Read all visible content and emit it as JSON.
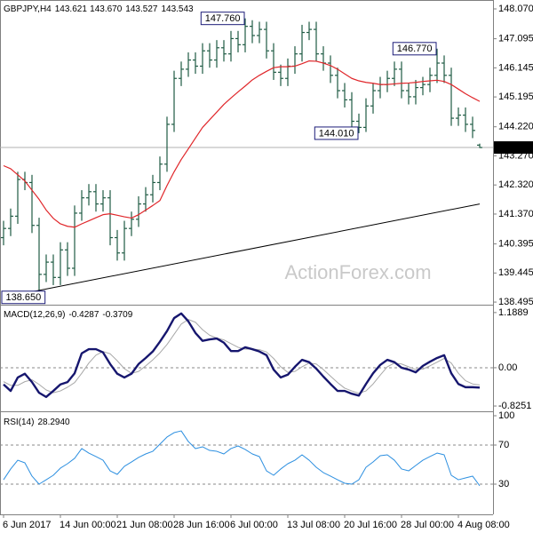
{
  "chart_data": {
    "type": "ohlc",
    "symbol": "GBPJPY,H4",
    "watermark": "ActionForex.com",
    "xlim": [
      -0.5,
      68.875
    ],
    "xticks": [
      {
        "value": 0,
        "label": "6 Jun 2017"
      },
      {
        "value": 8,
        "label": "14 Jun 00:00"
      },
      {
        "value": 16,
        "label": "21 Jun 08:00"
      },
      {
        "value": 24,
        "label": "28 Jun 16:00"
      },
      {
        "value": 32,
        "label": "6 Jul 00:00"
      },
      {
        "value": 40,
        "label": "13 Jul 08:00"
      },
      {
        "value": 48,
        "label": "20 Jul 16:00"
      },
      {
        "value": 56,
        "label": "28 Jul 00:00"
      },
      {
        "value": 64,
        "label": "4 Aug 08:00"
      }
    ],
    "ylim": [
      138.41,
      148.36
    ],
    "yticks": [
      {
        "value": 148.07,
        "label": "148.070"
      },
      147.095,
      146.145,
      145.195,
      {
        "value": 144.22,
        "label": "144.220"
      },
      {
        "value": 143.27,
        "label": "143.270"
      },
      {
        "value": 142.32,
        "label": "142.320"
      },
      {
        "value": 141.37,
        "label": "141.370"
      },
      140.395,
      139.445,
      138.495
    ],
    "bars": {
      "color": "#1f5b44",
      "open": [
        140.6,
        140.9,
        141.3,
        142.5,
        142.4,
        141.0,
        139.4,
        139.8,
        139.3,
        140.2,
        139.6,
        141.4,
        141.9,
        142.1,
        141.7,
        141.9,
        140.6,
        140.1,
        140.9,
        141.2,
        141.7,
        142.0,
        142.4,
        143.0,
        144.3,
        145.8,
        146.1,
        146.4,
        146.2,
        146.7,
        146.4,
        146.8,
        146.6,
        147.1,
        146.9,
        147.5,
        147.2,
        147.4,
        146.7,
        146.0,
        145.8,
        146.2,
        146.6,
        147.3,
        147.4,
        146.6,
        146.3,
        145.9,
        145.4,
        145.1,
        144.4,
        144.2,
        144.9,
        145.4,
        145.6,
        145.8,
        146.1,
        145.4,
        145.2,
        145.5,
        145.6,
        145.9,
        146.3,
        145.9,
        144.5,
        144.6,
        144.3,
        143.621
      ],
      "high": [
        141.15,
        141.55,
        142.75,
        142.75,
        142.65,
        141.25,
        140.05,
        140.05,
        140.45,
        140.45,
        141.65,
        142.15,
        142.35,
        142.35,
        142.15,
        142.15,
        140.85,
        141.15,
        141.45,
        141.95,
        142.25,
        142.65,
        143.25,
        144.55,
        146.05,
        146.35,
        146.65,
        146.65,
        146.95,
        146.95,
        147.05,
        147.05,
        147.35,
        147.35,
        147.76,
        147.7,
        147.65,
        147.65,
        146.95,
        146.25,
        146.45,
        146.85,
        147.55,
        147.65,
        147.65,
        146.85,
        146.55,
        146.15,
        145.65,
        145.35,
        144.65,
        145.15,
        145.65,
        145.85,
        146.05,
        146.35,
        146.35,
        145.65,
        145.75,
        145.85,
        146.15,
        146.77,
        146.55,
        146.15,
        144.85,
        144.85,
        144.55,
        143.67
      ],
      "high_labels": [
        null,
        null,
        null,
        null,
        null,
        null,
        null,
        null,
        null,
        null,
        null,
        null,
        null,
        null,
        null,
        null,
        null,
        null,
        null,
        null,
        null,
        null,
        null,
        null,
        null,
        null,
        null,
        null,
        null,
        null,
        null,
        null,
        null,
        null,
        null,
        null,
        null,
        null,
        null,
        null,
        null,
        null,
        null,
        null,
        null,
        null,
        null,
        null,
        null,
        null,
        null,
        null,
        null,
        null,
        null,
        null,
        null,
        null,
        null,
        null,
        null,
        null,
        null,
        null,
        null,
        null,
        null,
        "143.670"
      ],
      "low": [
        140.35,
        140.65,
        141.05,
        142.15,
        140.75,
        138.65,
        139.15,
        139.05,
        139.05,
        139.35,
        139.35,
        141.15,
        141.65,
        141.45,
        141.45,
        140.35,
        139.85,
        139.85,
        140.65,
        140.95,
        141.45,
        141.75,
        142.15,
        142.75,
        144.05,
        145.55,
        145.85,
        145.95,
        145.95,
        146.15,
        146.15,
        146.35,
        146.35,
        146.65,
        146.65,
        146.95,
        146.95,
        146.45,
        145.75,
        145.55,
        145.55,
        145.95,
        146.35,
        147.05,
        146.35,
        146.05,
        145.65,
        145.15,
        144.85,
        144.15,
        144.01,
        144.05,
        144.65,
        145.15,
        145.35,
        145.55,
        145.15,
        144.95,
        144.95,
        145.25,
        145.35,
        145.65,
        145.65,
        144.25,
        144.25,
        144.05,
        143.85,
        143.527
      ],
      "close": [
        140.9,
        141.3,
        142.5,
        142.4,
        141.0,
        139.4,
        139.8,
        139.3,
        140.2,
        139.6,
        141.4,
        141.9,
        142.1,
        141.7,
        141.9,
        140.6,
        140.1,
        140.9,
        141.2,
        141.7,
        142.0,
        142.4,
        143.0,
        144.3,
        145.8,
        146.1,
        146.4,
        146.2,
        146.7,
        146.4,
        146.8,
        146.6,
        147.1,
        146.9,
        147.5,
        147.2,
        147.4,
        146.7,
        146.0,
        145.8,
        146.2,
        146.6,
        147.3,
        147.4,
        146.6,
        146.3,
        145.9,
        145.4,
        145.1,
        144.4,
        144.2,
        144.9,
        145.4,
        145.6,
        145.8,
        146.1,
        145.4,
        145.2,
        145.5,
        145.6,
        145.9,
        146.3,
        145.9,
        144.5,
        144.6,
        144.3,
        144.1,
        143.543
      ]
    },
    "ma": {
      "color": "#e0262a",
      "values": [
        142.95,
        142.85,
        142.65,
        142.45,
        142.15,
        141.85,
        141.5,
        141.23,
        141.05,
        140.97,
        140.94,
        141.05,
        141.15,
        141.25,
        141.35,
        141.38,
        141.33,
        141.28,
        141.24,
        141.35,
        141.5,
        141.65,
        141.81,
        142.3,
        142.75,
        143.15,
        143.5,
        143.85,
        144.2,
        144.45,
        144.7,
        144.95,
        145.16,
        145.36,
        145.55,
        145.75,
        145.9,
        146.03,
        146.15,
        146.18,
        146.18,
        146.2,
        146.28,
        146.37,
        146.36,
        146.3,
        146.22,
        146.1,
        145.95,
        145.8,
        145.72,
        145.67,
        145.64,
        145.6,
        145.6,
        145.62,
        145.64,
        145.65,
        145.67,
        145.7,
        145.72,
        145.74,
        145.7,
        145.6,
        145.45,
        145.3,
        145.17,
        145.05
      ]
    },
    "trendline": {
      "color": "#000000",
      "values": [
        138.65,
        141.7
      ]
    },
    "annotations": [
      {
        "value": 147.76,
        "label": "147.760"
      },
      {
        "value": 146.77,
        "label": "146.770"
      },
      {
        "value": 144.01,
        "label": "144.010"
      },
      {
        "value": 138.65,
        "label": "138.650"
      }
    ],
    "macd": {
      "name": "MACD(12,26,9)",
      "ylim": [
        -0.92,
        1.32
      ],
      "yticks": [
        1.1889,
        {
          "value": 0,
          "label": "0.00"
        },
        -0.8251
      ],
      "levels": [
        0
      ],
      "main": {
        "color": "#16166e",
        "values": [
          -0.36,
          -0.5,
          -0.21,
          -0.13,
          -0.31,
          -0.54,
          -0.63,
          -0.5,
          -0.36,
          -0.31,
          -0.12,
          0.31,
          0.4,
          0.4,
          0.33,
          0.08,
          -0.13,
          -0.21,
          -0.13,
          0.08,
          0.21,
          0.35,
          0.56,
          0.79,
          1.07,
          1.17,
          1.0,
          0.75,
          0.58,
          0.61,
          0.63,
          0.54,
          0.36,
          0.36,
          0.44,
          0.4,
          0.35,
          0.27,
          -0.04,
          -0.21,
          -0.15,
          0.02,
          0.17,
          0.12,
          -0.02,
          -0.19,
          -0.35,
          -0.5,
          -0.5,
          -0.56,
          -0.6,
          -0.35,
          -0.12,
          0.06,
          0.17,
          0.12,
          0.0,
          -0.04,
          -0.1,
          0.04,
          0.13,
          0.21,
          0.27,
          -0.12,
          -0.35,
          -0.42,
          -0.42,
          -0.4287
        ]
      },
      "signal": {
        "color": "#a8a8a8",
        "values": [
          -0.3,
          -0.38,
          -0.38,
          -0.3,
          -0.26,
          -0.36,
          -0.48,
          -0.54,
          -0.5,
          -0.42,
          -0.32,
          -0.12,
          0.1,
          0.27,
          0.35,
          0.3,
          0.15,
          -0.02,
          -0.12,
          -0.08,
          0.04,
          0.17,
          0.32,
          0.5,
          0.72,
          0.94,
          1.04,
          0.98,
          0.82,
          0.7,
          0.64,
          0.6,
          0.52,
          0.44,
          0.4,
          0.4,
          0.39,
          0.34,
          0.2,
          0.02,
          -0.1,
          -0.08,
          0.02,
          0.1,
          0.08,
          -0.04,
          -0.18,
          -0.32,
          -0.44,
          -0.5,
          -0.55,
          -0.5,
          -0.35,
          -0.16,
          0.02,
          0.1,
          0.08,
          0.02,
          -0.04,
          -0.03,
          0.04,
          0.12,
          0.2,
          0.1,
          -0.12,
          -0.28,
          -0.35,
          -0.3709
        ]
      }
    },
    "rsi": {
      "name": "RSI(14)",
      "color": "#2c8fe0",
      "ylim": [
        0,
        100
      ],
      "yticks": [
        100,
        70,
        30
      ],
      "levels": [
        70,
        30
      ],
      "values": [
        34.5,
        45.5,
        54.5,
        51.8,
        38.2,
        30.0,
        34.5,
        39.1,
        46.4,
        50.9,
        56.4,
        66.4,
        61.8,
        58.2,
        54.5,
        43.6,
        40.0,
        48.2,
        52.7,
        57.3,
        60.9,
        63.6,
        70.9,
        78.2,
        82.7,
        84.5,
        73.6,
        66.4,
        68.2,
        64.5,
        63.6,
        60.9,
        66.4,
        69.1,
        65.5,
        60.9,
        58.2,
        43.6,
        39.1,
        45.5,
        50.9,
        54.5,
        60.0,
        54.5,
        47.3,
        41.8,
        38.2,
        34.5,
        30.9,
        30.0,
        34.5,
        47.3,
        52.7,
        59.1,
        60.0,
        54.5,
        45.5,
        43.6,
        49.1,
        54.5,
        58.2,
        61.8,
        60.0,
        39.1,
        34.5,
        36.4,
        38.2,
        28.294
      ],
      "value_labels": [
        null,
        null,
        null,
        null,
        null,
        null,
        null,
        null,
        null,
        null,
        null,
        null,
        null,
        null,
        null,
        null,
        null,
        null,
        null,
        null,
        null,
        null,
        null,
        null,
        null,
        null,
        null,
        null,
        null,
        null,
        null,
        null,
        null,
        null,
        null,
        null,
        null,
        null,
        null,
        null,
        null,
        null,
        null,
        null,
        null,
        null,
        null,
        null,
        null,
        null,
        null,
        null,
        null,
        null,
        null,
        null,
        null,
        null,
        null,
        null,
        null,
        null,
        null,
        null,
        null,
        null,
        null,
        "28.2940"
      ]
    }
  }
}
